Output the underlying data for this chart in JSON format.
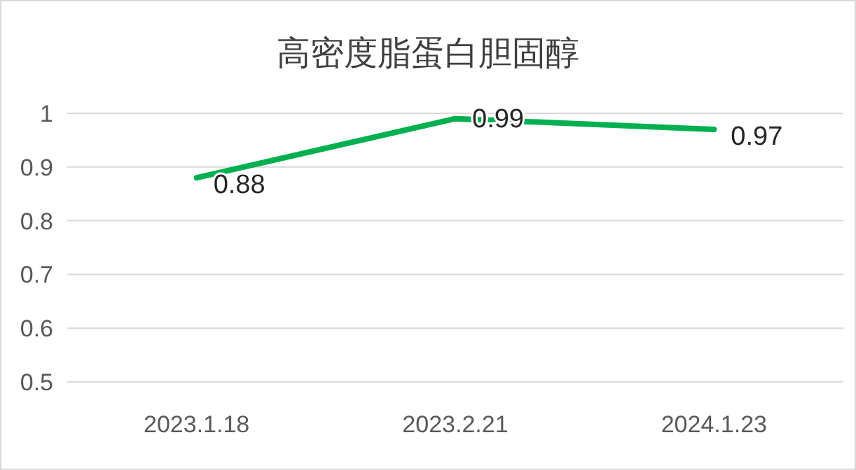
{
  "chart_data": {
    "type": "line",
    "title": "高密度脂蛋白胆固醇",
    "categories": [
      "2023.1.18",
      "2023.2.21",
      "2024.1.23"
    ],
    "values": [
      0.88,
      0.99,
      0.97
    ],
    "color": "#00b050",
    "ylim": [
      0.5,
      1
    ],
    "yticks": [
      0.5,
      0.6,
      0.7,
      0.8,
      0.9,
      1
    ],
    "grid": "y",
    "data_labels": true,
    "marker": "none",
    "line_style": "solid"
  }
}
